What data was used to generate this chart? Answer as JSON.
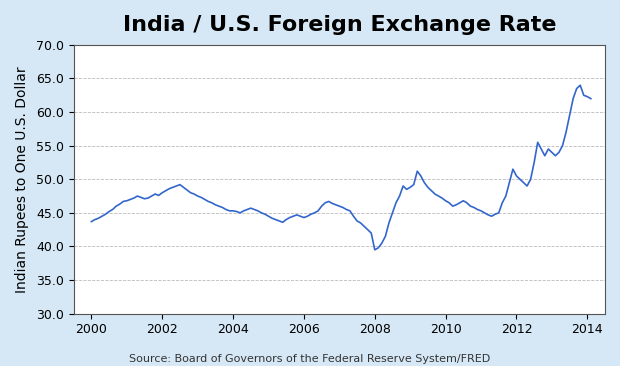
{
  "title": "India / U.S. Foreign Exchange Rate",
  "xlabel": "",
  "ylabel": "Indian Rupees to One U.S. Dollar",
  "source_text": "Source: Board of Governors of the Federal Reserve System/FRED",
  "ylim": [
    30.0,
    70.0
  ],
  "xlim": [
    1999.5,
    2014.5
  ],
  "yticks": [
    30.0,
    35.0,
    40.0,
    45.0,
    50.0,
    55.0,
    60.0,
    65.0,
    70.0
  ],
  "xticks": [
    2000,
    2002,
    2004,
    2006,
    2008,
    2010,
    2012,
    2014
  ],
  "line_color": "#3366cc",
  "background_color": "#d6e8f5",
  "plot_bg_color": "#ffffff",
  "grid_color": "#aaaaaa",
  "title_fontsize": 16,
  "label_fontsize": 10,
  "tick_fontsize": 9,
  "source_fontsize": 8,
  "years": [
    2000.0,
    2000.1,
    2000.2,
    2000.3,
    2000.4,
    2000.5,
    2000.6,
    2000.7,
    2000.8,
    2000.9,
    2001.0,
    2001.1,
    2001.2,
    2001.3,
    2001.4,
    2001.5,
    2001.6,
    2001.7,
    2001.8,
    2001.9,
    2002.0,
    2002.1,
    2002.2,
    2002.3,
    2002.4,
    2002.5,
    2002.6,
    2002.7,
    2002.8,
    2002.9,
    2003.0,
    2003.1,
    2003.2,
    2003.3,
    2003.4,
    2003.5,
    2003.6,
    2003.7,
    2003.8,
    2003.9,
    2004.0,
    2004.1,
    2004.2,
    2004.3,
    2004.4,
    2004.5,
    2004.6,
    2004.7,
    2004.8,
    2004.9,
    2005.0,
    2005.1,
    2005.2,
    2005.3,
    2005.4,
    2005.5,
    2005.6,
    2005.7,
    2005.8,
    2005.9,
    2006.0,
    2006.1,
    2006.2,
    2006.3,
    2006.4,
    2006.5,
    2006.6,
    2006.7,
    2006.8,
    2006.9,
    2007.0,
    2007.1,
    2007.2,
    2007.3,
    2007.4,
    2007.5,
    2007.6,
    2007.7,
    2007.8,
    2007.9,
    2008.0,
    2008.1,
    2008.2,
    2008.3,
    2008.4,
    2008.5,
    2008.6,
    2008.7,
    2008.8,
    2008.9,
    2009.0,
    2009.1,
    2009.2,
    2009.3,
    2009.4,
    2009.5,
    2009.6,
    2009.7,
    2009.8,
    2009.9,
    2010.0,
    2010.1,
    2010.2,
    2010.3,
    2010.4,
    2010.5,
    2010.6,
    2010.7,
    2010.8,
    2010.9,
    2011.0,
    2011.1,
    2011.2,
    2011.3,
    2011.4,
    2011.5,
    2011.6,
    2011.7,
    2011.8,
    2011.9,
    2012.0,
    2012.1,
    2012.2,
    2012.3,
    2012.4,
    2012.5,
    2012.6,
    2012.7,
    2012.8,
    2012.9,
    2013.0,
    2013.1,
    2013.2,
    2013.3,
    2013.4,
    2013.5,
    2013.6,
    2013.7,
    2013.8,
    2013.9,
    2014.0,
    2014.1
  ],
  "values": [
    43.7,
    44.0,
    44.2,
    44.5,
    44.8,
    45.2,
    45.5,
    46.0,
    46.3,
    46.7,
    46.8,
    47.0,
    47.2,
    47.5,
    47.3,
    47.1,
    47.2,
    47.5,
    47.8,
    47.6,
    48.0,
    48.3,
    48.6,
    48.8,
    49.0,
    49.2,
    48.8,
    48.4,
    48.0,
    47.8,
    47.5,
    47.3,
    47.0,
    46.7,
    46.5,
    46.2,
    46.0,
    45.8,
    45.5,
    45.3,
    45.3,
    45.2,
    45.0,
    45.3,
    45.5,
    45.7,
    45.5,
    45.3,
    45.0,
    44.8,
    44.5,
    44.2,
    44.0,
    43.8,
    43.6,
    44.0,
    44.3,
    44.5,
    44.7,
    44.5,
    44.3,
    44.5,
    44.8,
    45.0,
    45.3,
    46.0,
    46.5,
    46.7,
    46.4,
    46.2,
    46.0,
    45.8,
    45.5,
    45.3,
    44.5,
    43.8,
    43.5,
    43.0,
    42.5,
    42.0,
    39.5,
    39.8,
    40.5,
    41.5,
    43.5,
    45.0,
    46.5,
    47.5,
    49.0,
    48.5,
    48.8,
    49.2,
    51.2,
    50.5,
    49.5,
    48.8,
    48.3,
    47.8,
    47.5,
    47.2,
    46.8,
    46.5,
    46.0,
    46.2,
    46.5,
    46.8,
    46.5,
    46.0,
    45.8,
    45.5,
    45.3,
    45.0,
    44.7,
    44.5,
    44.8,
    45.0,
    46.5,
    47.5,
    49.5,
    51.5,
    50.5,
    50.0,
    49.5,
    49.0,
    50.0,
    52.5,
    55.5,
    54.5,
    53.5,
    54.5,
    54.0,
    53.5,
    54.0,
    55.0,
    57.0,
    59.5,
    62.0,
    63.5,
    64.0,
    62.5,
    62.3,
    62.0
  ]
}
